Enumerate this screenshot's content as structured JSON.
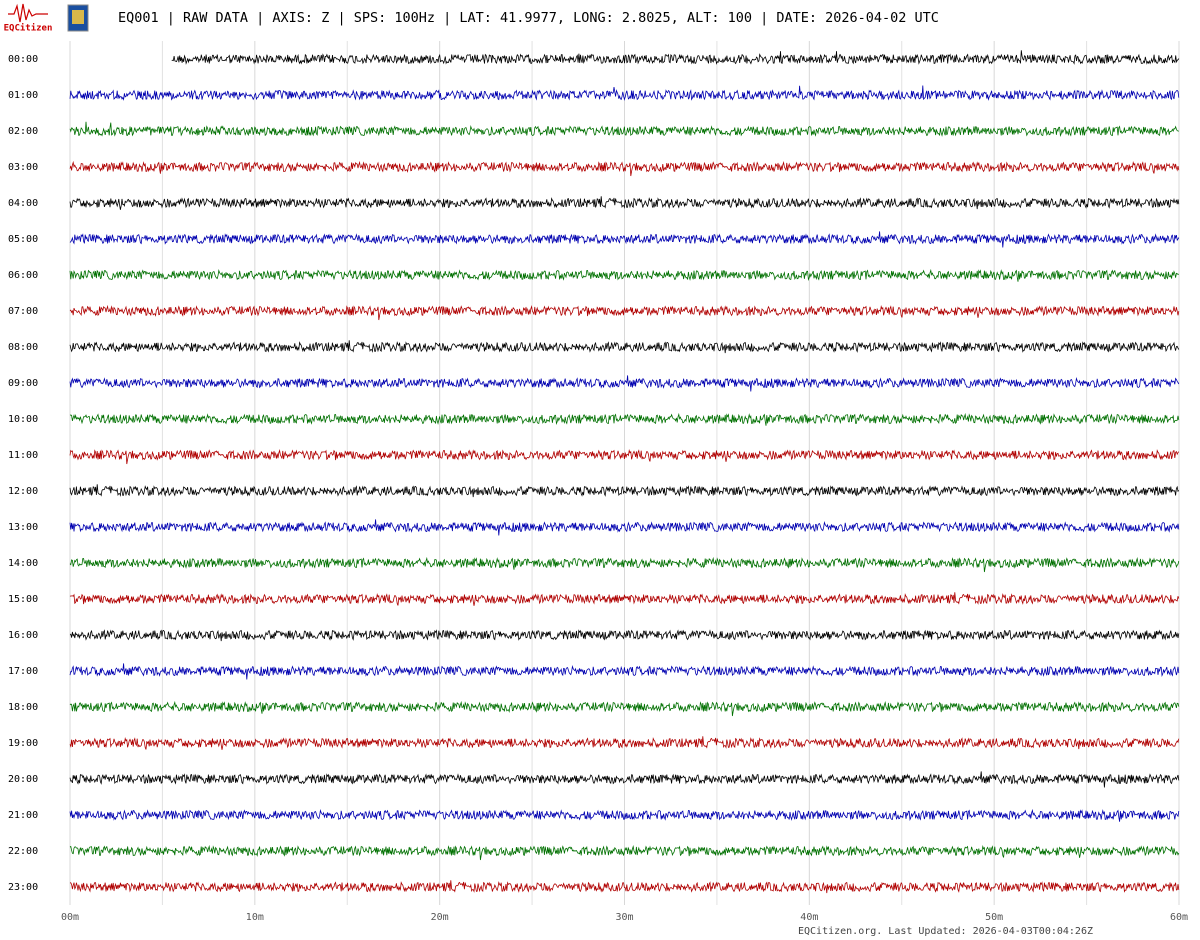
{
  "logo_text": "EQCitizen",
  "chart_data": {
    "type": "helicorder",
    "title": "EQ001 | RAW DATA | AXIS: Z | SPS: 100Hz | LAT: 41.9977, LONG: 2.8025, ALT: 100 | DATE: 2026-04-02 UTC",
    "footer": "EQCitizen.org. Last Updated: 2026-04-03T00:04:26Z",
    "categories": [
      "00:00",
      "01:00",
      "02:00",
      "03:00",
      "04:00",
      "05:00",
      "06:00",
      "07:00",
      "08:00",
      "09:00",
      "10:00",
      "11:00",
      "12:00",
      "13:00",
      "14:00",
      "15:00",
      "16:00",
      "17:00",
      "18:00",
      "19:00",
      "20:00",
      "21:00",
      "22:00",
      "23:00"
    ],
    "colors": [
      "#000000",
      "#0000b0",
      "#007000",
      "#b00000"
    ],
    "first_trace_start": 5.5,
    "xlim": [
      0,
      60
    ],
    "xticks": [
      {
        "value": 0,
        "label": "00m"
      },
      {
        "value": 10,
        "label": "10m"
      },
      {
        "value": 20,
        "label": "20m"
      },
      {
        "value": 30,
        "label": "30m"
      },
      {
        "value": 40,
        "label": "40m"
      },
      {
        "value": 50,
        "label": "50m"
      },
      {
        "value": 60,
        "label": "60m"
      }
    ],
    "xminorticks": [
      5,
      15,
      25,
      35,
      45,
      55
    ],
    "grid": true
  }
}
